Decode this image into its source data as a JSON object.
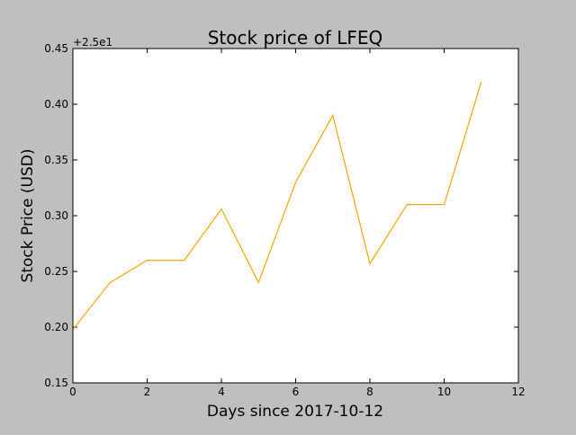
{
  "chart_data": {
    "type": "line",
    "title": "Stock price of LFEQ",
    "xlabel": "Days since 2017-10-12",
    "ylabel": "Stock Price (USD)",
    "y_offset_label": "+2.5e1",
    "xlim": [
      0,
      12
    ],
    "ylim": [
      0.15,
      0.45
    ],
    "x_ticks": [
      0,
      2,
      4,
      6,
      8,
      10,
      12
    ],
    "x_tick_labels": [
      "0",
      "2",
      "4",
      "6",
      "8",
      "10",
      "12"
    ],
    "y_ticks": [
      0.15,
      0.2,
      0.25,
      0.3,
      0.35,
      0.4,
      0.45
    ],
    "y_tick_labels": [
      "0.15",
      "0.20",
      "0.25",
      "0.30",
      "0.35",
      "0.40",
      "0.45"
    ],
    "grid": false,
    "series": [
      {
        "color": "#ffa500",
        "x": [
          0,
          1,
          2,
          3,
          4,
          5,
          6,
          7,
          8,
          9,
          10,
          11
        ],
        "y": [
          0.198,
          0.24,
          0.26,
          0.26,
          0.306,
          0.24,
          0.33,
          0.39,
          0.257,
          0.31,
          0.31,
          0.42
        ]
      }
    ]
  },
  "colors": {
    "background": "#bfbfbf",
    "plot_area": "#ffffff",
    "line": "#ffa500"
  }
}
